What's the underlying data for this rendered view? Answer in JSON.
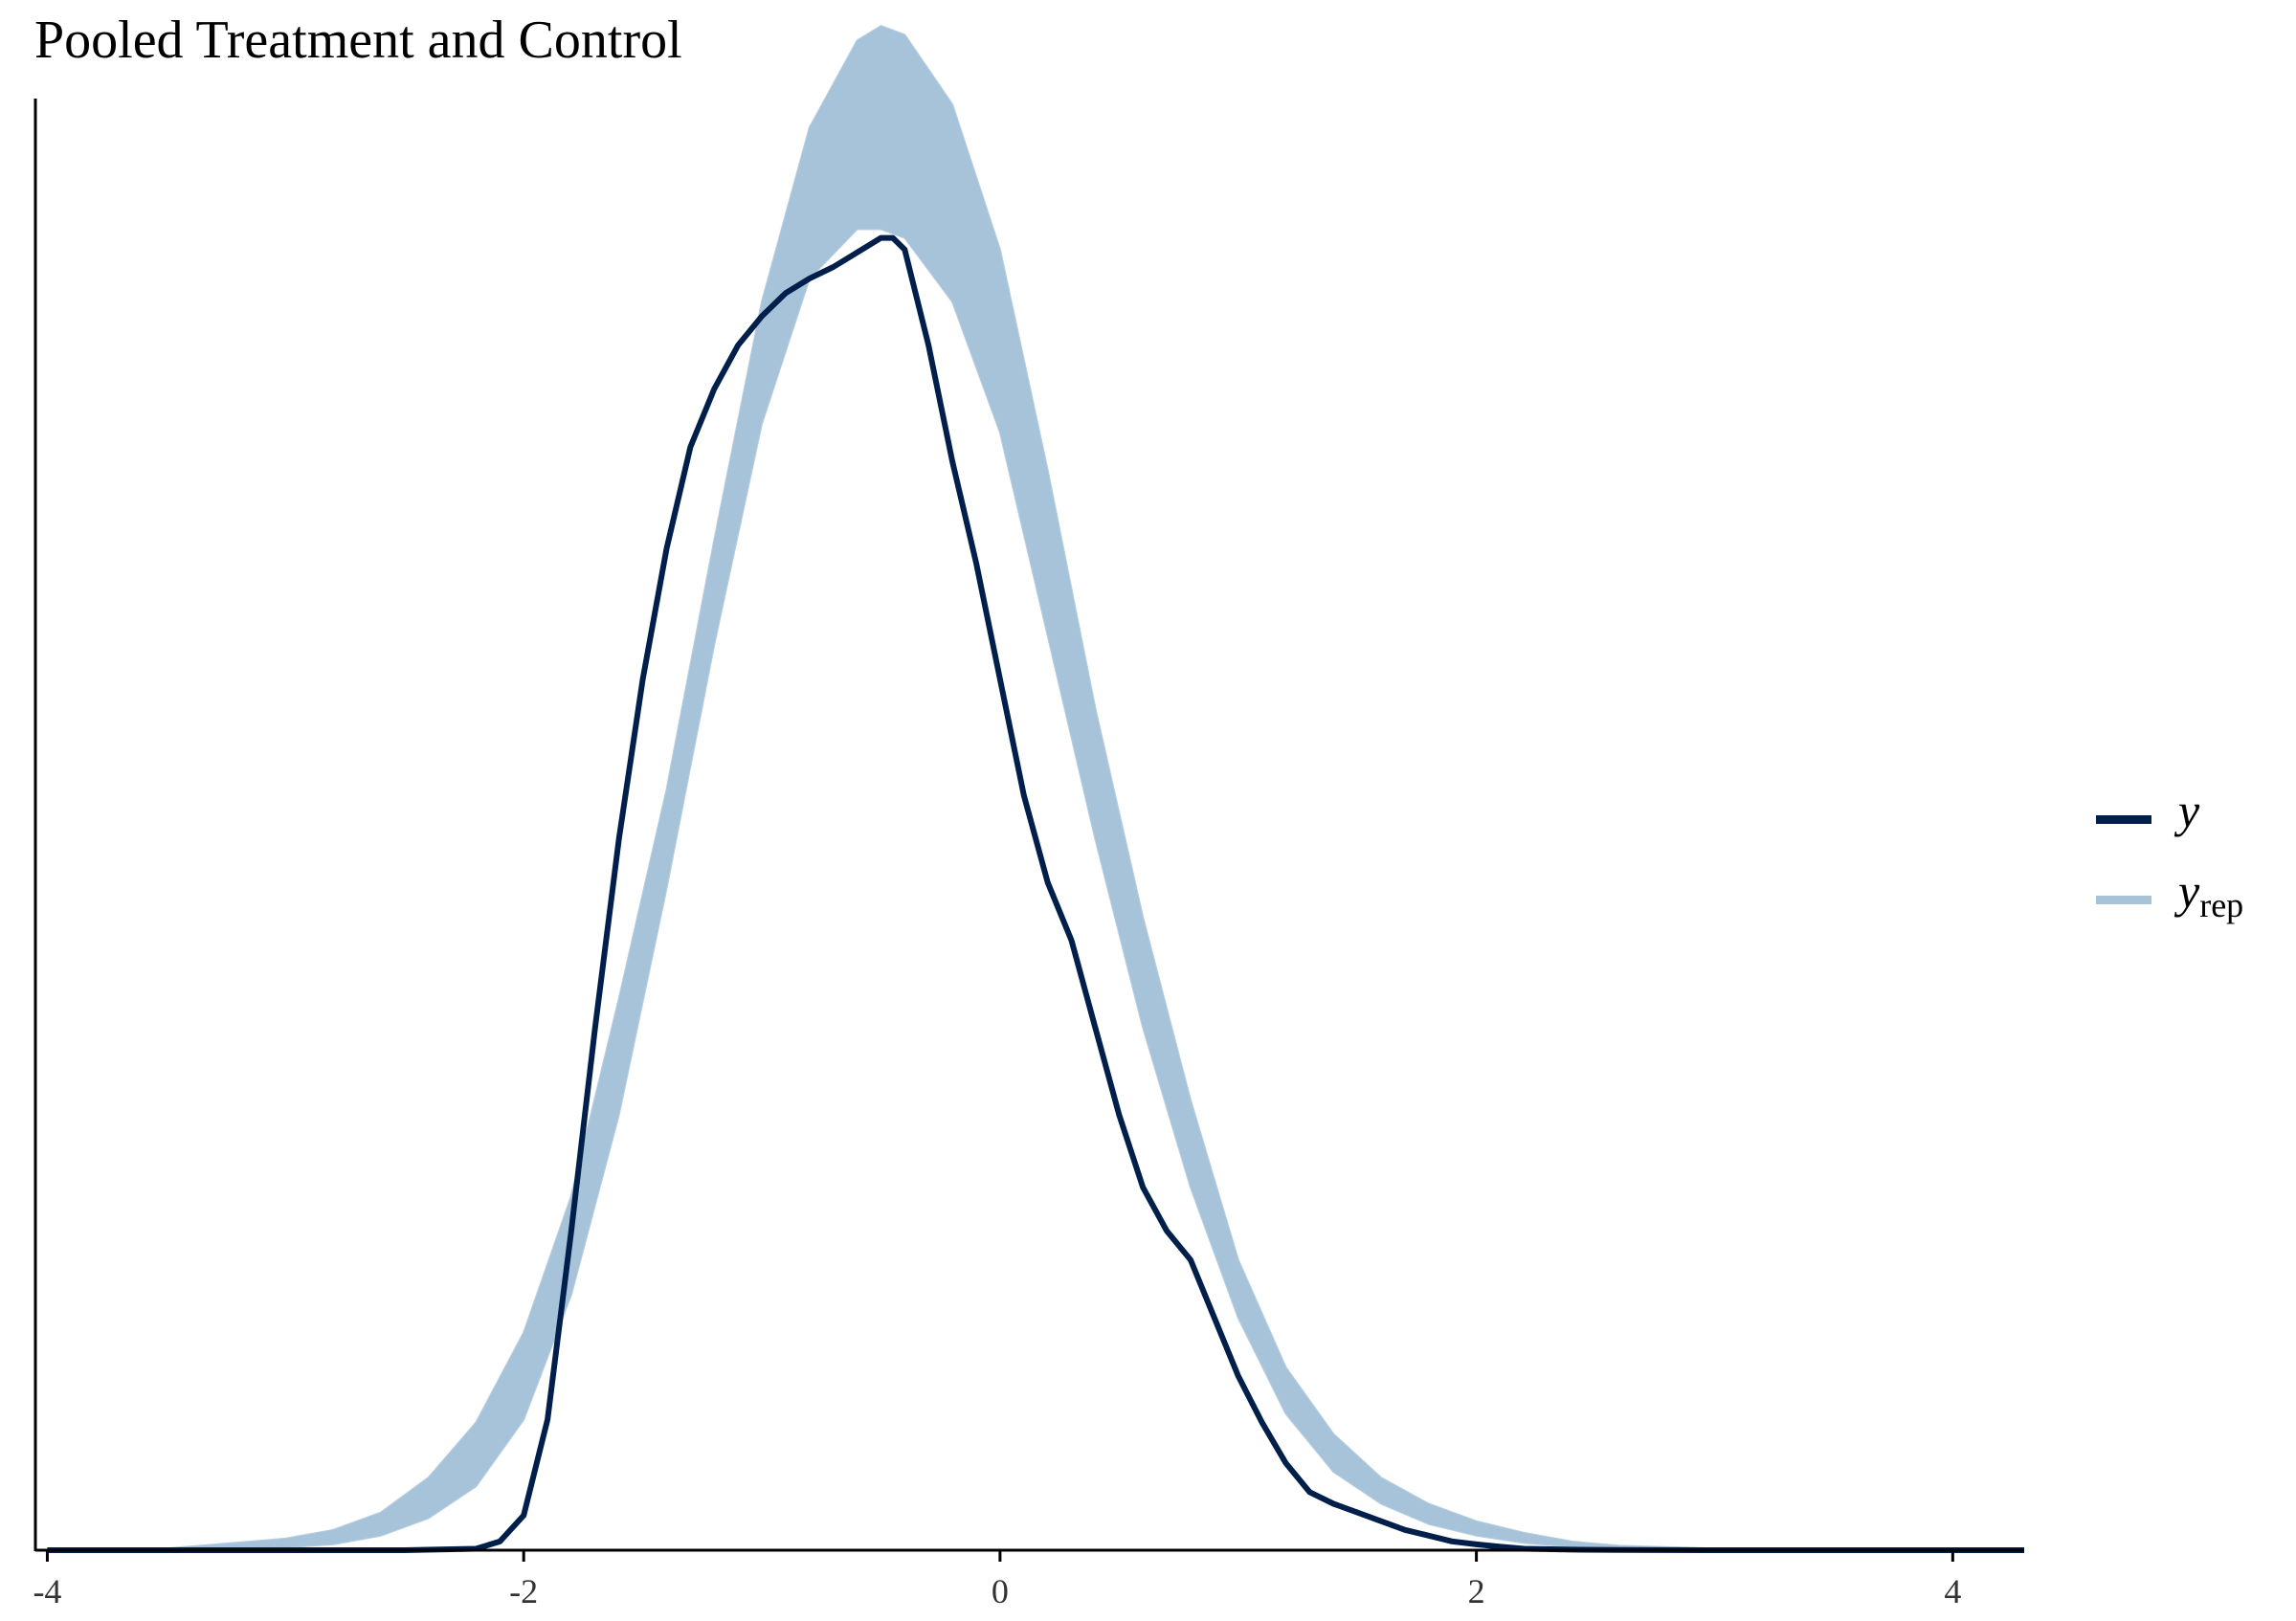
{
  "chart_data": {
    "type": "line",
    "title": "Pooled Treatment and Control",
    "xlabel": "",
    "ylabel": "",
    "xlim": [
      -4.05,
      4.3
    ],
    "ylim": [
      0,
      0.5
    ],
    "x_ticks": [
      -4,
      -2,
      0,
      2,
      4
    ],
    "x_tick_labels": [
      "-4",
      "-2",
      "0",
      "2",
      "4"
    ],
    "y_axis_ticks": "none",
    "grid": false,
    "legend_position": "right",
    "colors": {
      "y": "#011f4b",
      "yrep": "#a7c3da"
    },
    "series": [
      {
        "name": "y",
        "role": "observed density",
        "x": [
          -4.0,
          -3.0,
          -2.5,
          -2.2,
          -2.1,
          -2.0,
          -1.9,
          -1.8,
          -1.7,
          -1.6,
          -1.5,
          -1.4,
          -1.3,
          -1.2,
          -1.1,
          -1.0,
          -0.9,
          -0.8,
          -0.7,
          -0.6,
          -0.5,
          -0.45,
          -0.4,
          -0.3,
          -0.2,
          -0.1,
          0.0,
          0.1,
          0.2,
          0.3,
          0.4,
          0.5,
          0.6,
          0.7,
          0.8,
          0.9,
          1.0,
          1.1,
          1.2,
          1.3,
          1.4,
          1.5,
          1.6,
          1.7,
          1.8,
          1.9,
          2.0,
          2.1,
          2.2,
          2.4,
          2.6,
          3.0,
          4.3
        ],
        "y": [
          0.0,
          0.0,
          0.0,
          0.0005,
          0.003,
          0.012,
          0.045,
          0.11,
          0.18,
          0.245,
          0.3,
          0.345,
          0.38,
          0.4,
          0.415,
          0.425,
          0.433,
          0.438,
          0.442,
          0.447,
          0.452,
          0.452,
          0.448,
          0.415,
          0.375,
          0.34,
          0.3,
          0.26,
          0.23,
          0.21,
          0.18,
          0.15,
          0.125,
          0.11,
          0.1,
          0.08,
          0.06,
          0.044,
          0.03,
          0.02,
          0.016,
          0.013,
          0.01,
          0.007,
          0.005,
          0.003,
          0.002,
          0.0012,
          0.0005,
          0.0002,
          0.0001,
          0.0,
          0.0
        ]
      },
      {
        "name": "y_rep",
        "role": "replicated densities (many draws, envelope shown)",
        "x": [
          -4.0,
          -3.5,
          -3.0,
          -2.8,
          -2.6,
          -2.4,
          -2.2,
          -2.0,
          -1.8,
          -1.6,
          -1.4,
          -1.2,
          -1.0,
          -0.8,
          -0.6,
          -0.5,
          -0.4,
          -0.2,
          0.0,
          0.2,
          0.4,
          0.6,
          0.8,
          1.0,
          1.2,
          1.4,
          1.6,
          1.8,
          2.0,
          2.2,
          2.4,
          2.6,
          3.0,
          3.5,
          4.3
        ],
        "y_mean": [
          0.0,
          0.0003,
          0.002,
          0.004,
          0.009,
          0.018,
          0.033,
          0.06,
          0.105,
          0.17,
          0.245,
          0.33,
          0.41,
          0.465,
          0.49,
          0.497,
          0.495,
          0.47,
          0.42,
          0.345,
          0.27,
          0.2,
          0.14,
          0.09,
          0.055,
          0.033,
          0.02,
          0.012,
          0.007,
          0.004,
          0.002,
          0.001,
          0.0003,
          0.0001,
          0.0
        ],
        "y_low": [
          0.0,
          0.0,
          0.001,
          0.002,
          0.005,
          0.011,
          0.022,
          0.045,
          0.088,
          0.15,
          0.228,
          0.312,
          0.388,
          0.438,
          0.455,
          0.455,
          0.452,
          0.43,
          0.385,
          0.315,
          0.245,
          0.18,
          0.125,
          0.08,
          0.047,
          0.027,
          0.016,
          0.009,
          0.005,
          0.0025,
          0.0012,
          0.0005,
          0.0001,
          0.0,
          0.0
        ],
        "y_high": [
          0.0,
          0.0006,
          0.004,
          0.007,
          0.013,
          0.025,
          0.044,
          0.075,
          0.122,
          0.19,
          0.262,
          0.348,
          0.43,
          0.49,
          0.52,
          0.525,
          0.522,
          0.498,
          0.448,
          0.372,
          0.29,
          0.218,
          0.155,
          0.1,
          0.063,
          0.04,
          0.025,
          0.016,
          0.01,
          0.006,
          0.003,
          0.0015,
          0.0006,
          0.0002,
          0.0
        ]
      }
    ]
  },
  "legend": {
    "items": [
      {
        "label": "y",
        "sub": ""
      },
      {
        "label": "y",
        "sub": "rep"
      }
    ]
  }
}
